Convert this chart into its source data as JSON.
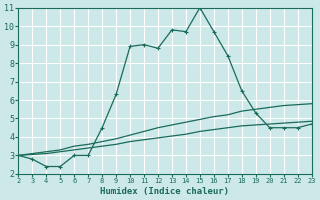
{
  "xlabel": "Humidex (Indice chaleur)",
  "bg_color": "#cce8e8",
  "grid_color": "#ffffff",
  "line_color": "#1a6b5a",
  "xlim": [
    2,
    23
  ],
  "ylim": [
    2,
    11
  ],
  "xticks": [
    2,
    3,
    4,
    5,
    6,
    7,
    8,
    9,
    10,
    11,
    12,
    13,
    14,
    15,
    16,
    17,
    18,
    19,
    20,
    21,
    22,
    23
  ],
  "yticks": [
    2,
    3,
    4,
    5,
    6,
    7,
    8,
    9,
    10,
    11
  ],
  "curve1_x": [
    2,
    3,
    4,
    5,
    6,
    7,
    8,
    9,
    10,
    11,
    12,
    13,
    14,
    15,
    16,
    17,
    18,
    19,
    20,
    21,
    22,
    23
  ],
  "curve1_y": [
    3.0,
    2.8,
    2.4,
    2.4,
    3.0,
    3.0,
    4.5,
    6.3,
    8.9,
    9.0,
    8.8,
    9.8,
    9.7,
    11.0,
    9.7,
    8.4,
    6.5,
    5.3,
    4.5,
    4.5,
    4.5,
    4.7
  ],
  "curve2_x": [
    2,
    3,
    4,
    5,
    6,
    7,
    8,
    9,
    10,
    11,
    12,
    13,
    14,
    15,
    16,
    17,
    18,
    19,
    20,
    21,
    22,
    23
  ],
  "curve2_y": [
    3.0,
    3.1,
    3.2,
    3.3,
    3.5,
    3.6,
    3.75,
    3.9,
    4.1,
    4.3,
    4.5,
    4.65,
    4.8,
    4.95,
    5.1,
    5.2,
    5.4,
    5.5,
    5.6,
    5.7,
    5.75,
    5.8
  ],
  "curve3_x": [
    2,
    3,
    4,
    5,
    6,
    7,
    8,
    9,
    10,
    11,
    12,
    13,
    14,
    15,
    16,
    17,
    18,
    19,
    20,
    21,
    22,
    23
  ],
  "curve3_y": [
    3.0,
    3.05,
    3.1,
    3.2,
    3.3,
    3.4,
    3.5,
    3.6,
    3.75,
    3.85,
    3.95,
    4.05,
    4.15,
    4.3,
    4.4,
    4.5,
    4.6,
    4.65,
    4.7,
    4.75,
    4.8,
    4.85
  ]
}
